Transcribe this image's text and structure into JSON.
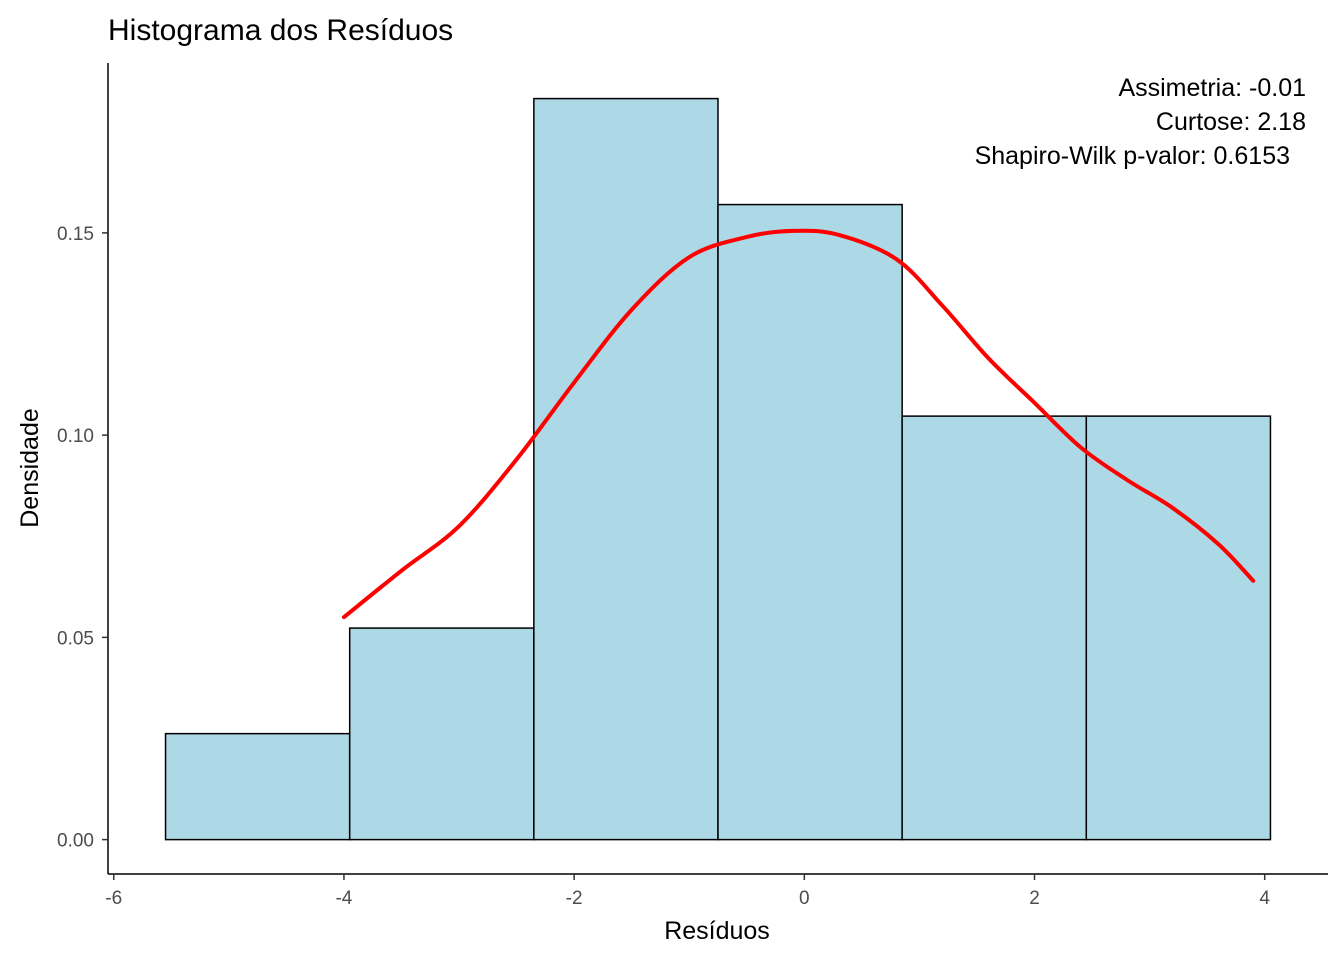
{
  "chart_data": {
    "type": "bar",
    "subtype": "histogram",
    "title": "Histograma dos Resíduos",
    "xlabel": "Resíduos",
    "ylabel": "Densidade",
    "xlim": [
      -6.05,
      4.55
    ],
    "ylim": [
      -0.0085,
      0.192
    ],
    "x_ticks": [
      -6,
      -4,
      -2,
      0,
      2,
      4
    ],
    "x_tick_labels": [
      "-6",
      "-4",
      "-2",
      "0",
      "2",
      "4"
    ],
    "y_ticks": [
      0,
      0.05,
      0.1,
      0.15
    ],
    "y_tick_labels": [
      "0.00",
      "0.05",
      "0.10",
      "0.15"
    ],
    "bins": [
      {
        "x0": -5.55,
        "x1": -3.95,
        "density": 0.0262
      },
      {
        "x0": -3.95,
        "x1": -2.35,
        "density": 0.0523
      },
      {
        "x0": -2.35,
        "x1": -0.75,
        "density": 0.1832
      },
      {
        "x0": -0.75,
        "x1": 0.85,
        "density": 0.157
      },
      {
        "x0": 0.85,
        "x1": 2.45,
        "density": 0.1047
      },
      {
        "x0": 2.45,
        "x1": 4.05,
        "density": 0.1047
      }
    ],
    "bar_fill": "#add8e6",
    "bar_stroke": "#000000",
    "density_curve": {
      "color": "#ff0000",
      "x": [
        -4.0,
        -3.5,
        -3.0,
        -2.5,
        -2.0,
        -1.5,
        -1.0,
        -0.5,
        -0.1,
        0.3,
        0.8,
        1.2,
        1.6,
        2.0,
        2.4,
        2.8,
        3.2,
        3.6,
        3.9
      ],
      "y": [
        0.055,
        0.0665,
        0.0775,
        0.094,
        0.113,
        0.131,
        0.144,
        0.149,
        0.1505,
        0.1495,
        0.1435,
        0.132,
        0.119,
        0.108,
        0.097,
        0.089,
        0.082,
        0.073,
        0.064
      ]
    },
    "grid": false,
    "annotations": {
      "position": "top-right",
      "lines": [
        "Assimetria: -0.01",
        "Curtose: 2.18",
        "Shapiro-Wilk p-valor: 0.6153"
      ]
    }
  }
}
